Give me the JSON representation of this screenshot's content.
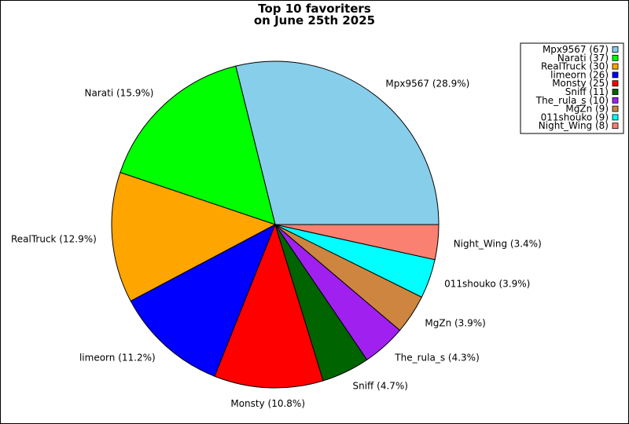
{
  "chart_data": {
    "type": "pie",
    "title_lines": [
      "Top 10 favoriters",
      "on June 25th 2025"
    ],
    "slices": [
      {
        "name": "Mpx9567",
        "value": 67,
        "color": "#87ceeb",
        "legend_label": "Mpx9567 (67)",
        "slice_label": "Mpx9567 (28.9%)"
      },
      {
        "name": "Narati",
        "value": 37,
        "color": "#00ff00",
        "legend_label": "Narati (37)",
        "slice_label": "Narati (15.9%)"
      },
      {
        "name": "RealTruck",
        "value": 30,
        "color": "#ffa500",
        "legend_label": "RealTruck (30)",
        "slice_label": "RealTruck (12.9%)"
      },
      {
        "name": "limeorn",
        "value": 26,
        "color": "#0000ff",
        "legend_label": "limeorn (26)",
        "slice_label": "limeorn (11.2%)"
      },
      {
        "name": "Monsty",
        "value": 25,
        "color": "#ff0000",
        "legend_label": "Monsty (25)",
        "slice_label": "Monsty (10.8%)"
      },
      {
        "name": "Sniff",
        "value": 11,
        "color": "#006400",
        "legend_label": "Sniff (11)",
        "slice_label": "Sniff (4.7%)"
      },
      {
        "name": "The_rula_s",
        "value": 10,
        "color": "#a020f0",
        "legend_label": "The_rula_s (10)",
        "slice_label": "The_rula_s (4.3%)"
      },
      {
        "name": "MgZn",
        "value": 9,
        "color": "#cd853f",
        "legend_label": "MgZn (9)",
        "slice_label": "MgZn (3.9%)"
      },
      {
        "name": "011shouko",
        "value": 9,
        "color": "#00ffff",
        "legend_label": "011shouko (9)",
        "slice_label": "011shouko (3.9%)"
      },
      {
        "name": "Night_Wing",
        "value": 8,
        "color": "#fa8072",
        "legend_label": "Night_Wing (8)",
        "slice_label": "Night_Wing (3.4%)"
      }
    ],
    "start": "east",
    "direction": "counterclockwise",
    "legend_position": "top-right"
  }
}
